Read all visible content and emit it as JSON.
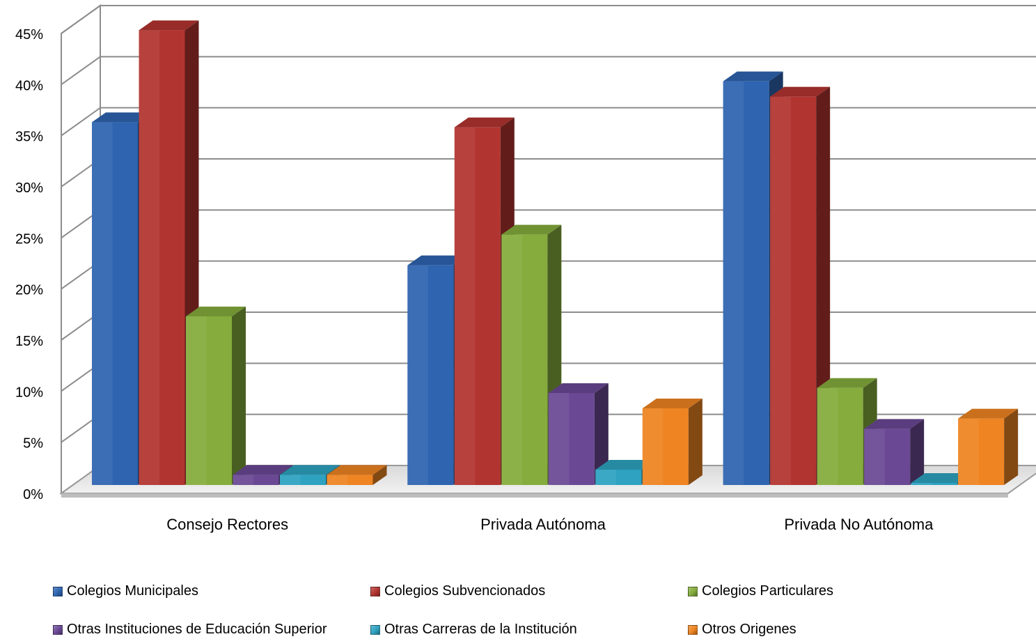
{
  "chart_data": {
    "type": "bar",
    "style": "3d-clustered-column",
    "title": "",
    "xlabel": "",
    "ylabel": "",
    "ylim": [
      0,
      45
    ],
    "y_tick_labels": [
      "0%",
      "5%",
      "10%",
      "15%",
      "20%",
      "25%",
      "30%",
      "35%",
      "40%",
      "45%"
    ],
    "grid": true,
    "legend_position": "bottom",
    "categories": [
      "Consejo Rectores",
      "Privada Autónoma",
      "Privada No Autónoma"
    ],
    "series": [
      {
        "name": "Colegios Municipales",
        "color": "#2E64B0",
        "values": [
          35.5,
          21.5,
          39.5
        ]
      },
      {
        "name": "Colegios Subvencionados",
        "color": "#B23430",
        "values": [
          44.5,
          35.0,
          38.0
        ]
      },
      {
        "name": "Colegios Particulares",
        "color": "#85AC3C",
        "values": [
          16.5,
          24.5,
          9.5
        ]
      },
      {
        "name": "Otras Instituciones de Educación Superior",
        "color": "#6A4894",
        "values": [
          1.0,
          9.0,
          5.5
        ]
      },
      {
        "name": "Otras Carreras de la Institución",
        "color": "#2EA2C0",
        "values": [
          1.0,
          1.5,
          0.0
        ]
      },
      {
        "name": "Otros Origenes",
        "color": "#EE8422",
        "values": [
          1.0,
          7.5,
          6.5
        ]
      }
    ]
  }
}
